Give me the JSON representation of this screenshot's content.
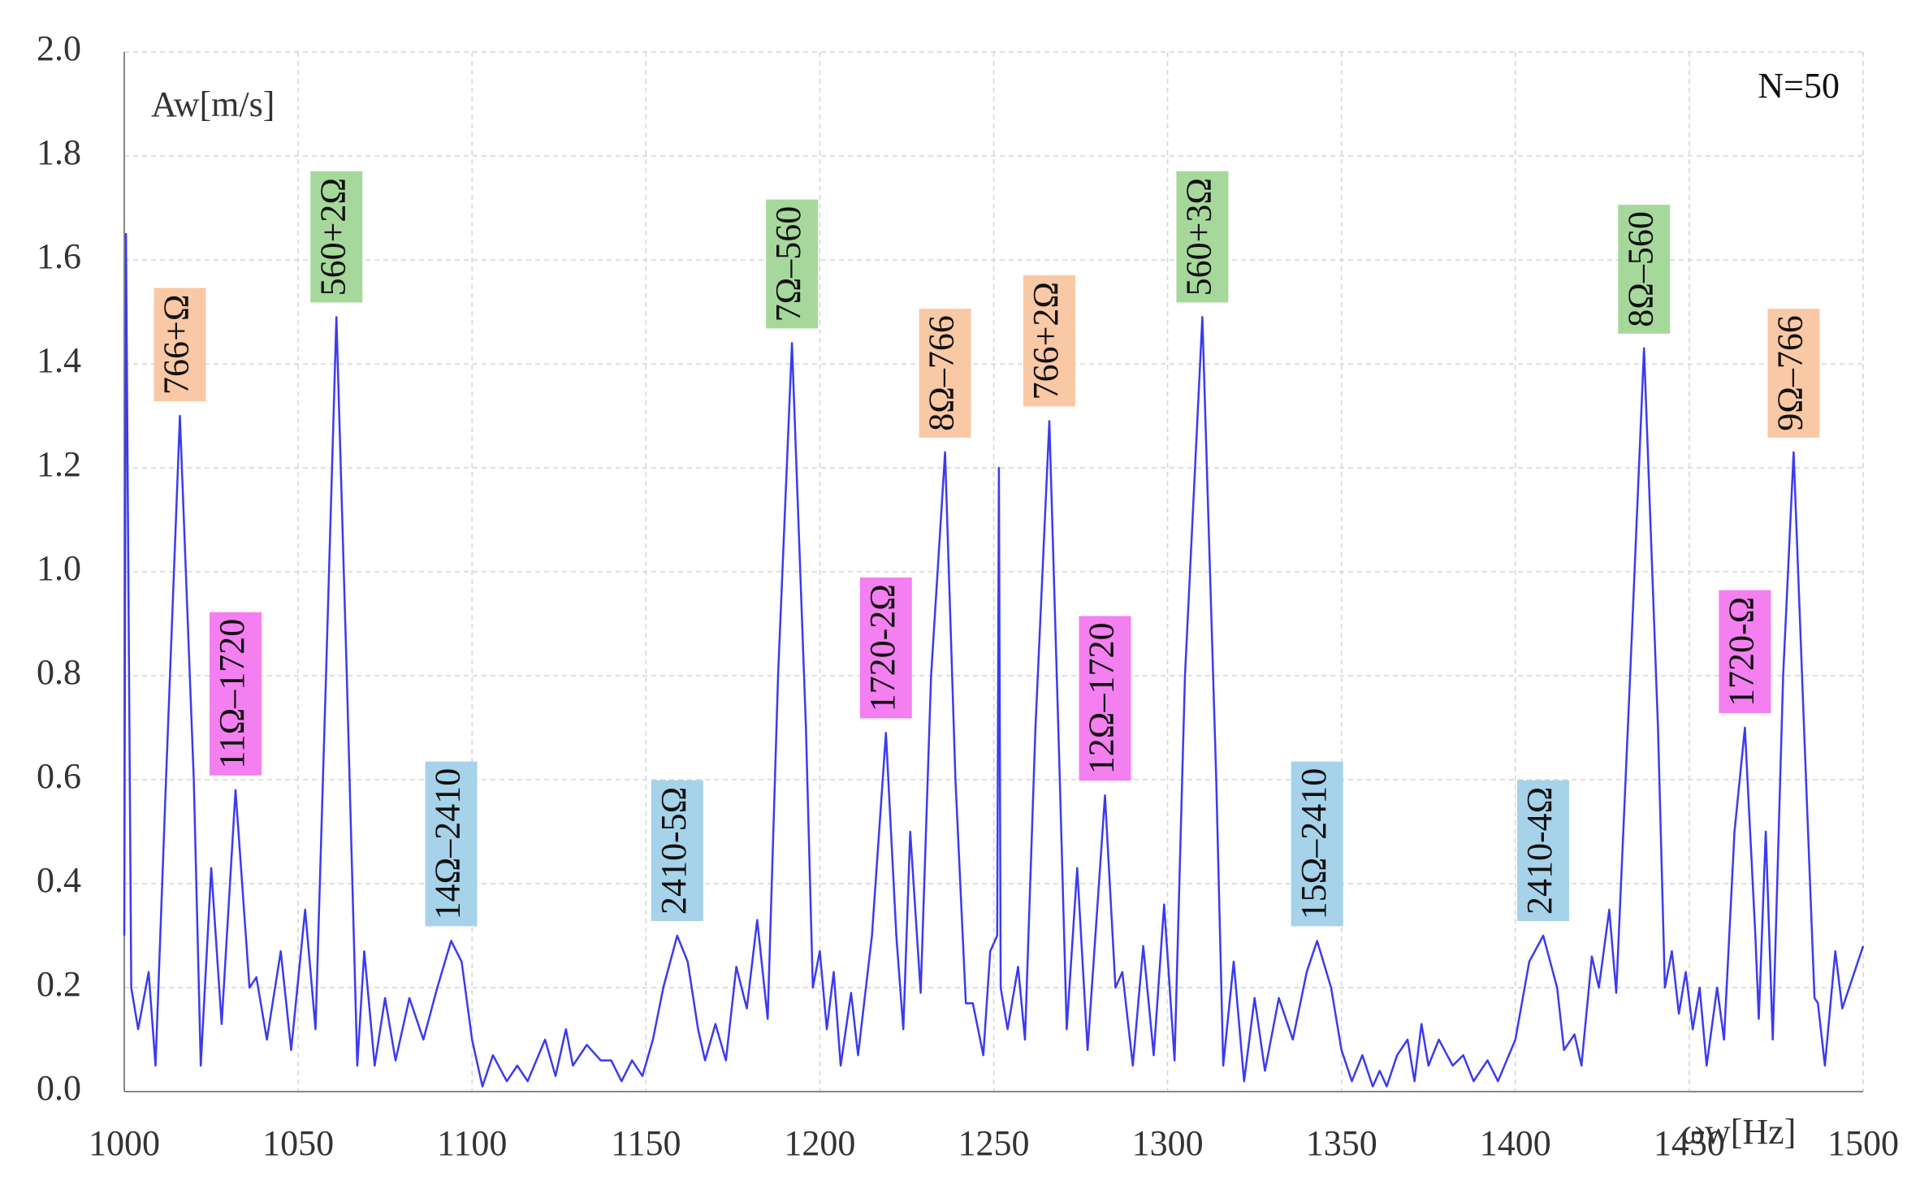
{
  "chart_data": {
    "type": "line",
    "y_label": "Aw[m/s]",
    "x_label": "ωw[Hz]",
    "note": "N=50",
    "x": [
      1000,
      1000.5,
      1002,
      1004,
      1007,
      1009,
      1012,
      1016,
      1020,
      1022,
      1025,
      1028,
      1032,
      1036,
      1038,
      1041,
      1045,
      1048,
      1052,
      1055,
      1058,
      1061,
      1064,
      1067,
      1069,
      1072,
      1075,
      1078,
      1082,
      1086,
      1090,
      1094,
      1097,
      1100,
      1103,
      1106,
      1110,
      1113,
      1116,
      1121,
      1124,
      1127,
      1129,
      1133,
      1137,
      1140,
      1143,
      1146,
      1149,
      1152,
      1155,
      1159,
      1162,
      1165,
      1167,
      1170,
      1173,
      1176,
      1179,
      1182,
      1185,
      1188,
      1192,
      1196,
      1198,
      1200,
      1202,
      1204,
      1206,
      1209,
      1211,
      1215,
      1219,
      1222,
      1224,
      1226,
      1229,
      1232,
      1236,
      1239,
      1242,
      1244,
      1247,
      1249,
      1251,
      1251.5,
      1252,
      1254,
      1257,
      1259,
      1262,
      1266,
      1269,
      1271,
      1274,
      1277,
      1282,
      1285,
      1287,
      1290,
      1293,
      1296,
      1299,
      1302,
      1305,
      1310,
      1314,
      1316,
      1319,
      1322,
      1325,
      1328,
      1332,
      1336,
      1340,
      1343,
      1347,
      1350,
      1353,
      1356,
      1359,
      1361,
      1363,
      1366,
      1369,
      1371,
      1373,
      1375,
      1378,
      1382,
      1385,
      1388,
      1392,
      1395,
      1400,
      1404,
      1408,
      1412,
      1414,
      1417,
      1419,
      1422,
      1424,
      1427,
      1429,
      1433,
      1437,
      1441,
      1443,
      1445,
      1447,
      1449,
      1451,
      1453,
      1455,
      1458,
      1460,
      1463,
      1466,
      1469,
      1470,
      1472,
      1474,
      1477,
      1480,
      1483,
      1486,
      1487,
      1489,
      1492,
      1494,
      1500
    ],
    "series": [
      {
        "color": "#3b3bef",
        "values": [
          0.3,
          1.65,
          0.2,
          0.12,
          0.23,
          0.05,
          0.6,
          1.3,
          0.6,
          0.05,
          0.43,
          0.13,
          0.58,
          0.2,
          0.22,
          0.1,
          0.27,
          0.08,
          0.35,
          0.12,
          0.8,
          1.49,
          0.8,
          0.05,
          0.27,
          0.05,
          0.18,
          0.06,
          0.18,
          0.1,
          0.2,
          0.29,
          0.25,
          0.1,
          0.01,
          0.07,
          0.02,
          0.05,
          0.02,
          0.1,
          0.03,
          0.12,
          0.05,
          0.09,
          0.06,
          0.06,
          0.02,
          0.06,
          0.03,
          0.1,
          0.2,
          0.3,
          0.25,
          0.12,
          0.06,
          0.13,
          0.06,
          0.24,
          0.16,
          0.33,
          0.14,
          0.8,
          1.44,
          0.7,
          0.2,
          0.27,
          0.12,
          0.23,
          0.05,
          0.19,
          0.07,
          0.3,
          0.69,
          0.3,
          0.12,
          0.5,
          0.19,
          0.8,
          1.23,
          0.6,
          0.17,
          0.17,
          0.07,
          0.27,
          0.3,
          1.2,
          0.2,
          0.12,
          0.24,
          0.1,
          0.7,
          1.29,
          0.6,
          0.12,
          0.43,
          0.08,
          0.57,
          0.2,
          0.23,
          0.05,
          0.28,
          0.07,
          0.36,
          0.06,
          0.8,
          1.49,
          0.6,
          0.05,
          0.25,
          0.02,
          0.18,
          0.04,
          0.18,
          0.1,
          0.23,
          0.29,
          0.2,
          0.08,
          0.02,
          0.07,
          0.01,
          0.04,
          0.01,
          0.07,
          0.1,
          0.02,
          0.13,
          0.05,
          0.1,
          0.05,
          0.07,
          0.02,
          0.06,
          0.02,
          0.1,
          0.25,
          0.3,
          0.2,
          0.08,
          0.11,
          0.05,
          0.26,
          0.2,
          0.35,
          0.19,
          0.8,
          1.43,
          0.7,
          0.2,
          0.27,
          0.15,
          0.23,
          0.12,
          0.2,
          0.05,
          0.2,
          0.1,
          0.5,
          0.7,
          0.3,
          0.14,
          0.5,
          0.1,
          0.8,
          1.23,
          0.7,
          0.18,
          0.17,
          0.05,
          0.27,
          0.16,
          0.28
        ]
      }
    ],
    "xlim": [
      1000,
      1500
    ],
    "xticks": [
      1000,
      1050,
      1100,
      1150,
      1200,
      1250,
      1300,
      1350,
      1400,
      1450,
      1500
    ],
    "ylim": [
      0,
      2
    ],
    "yticks": [
      {
        "value": 0,
        "label": "0.0"
      },
      0.2,
      0.4,
      0.6,
      0.8,
      {
        "value": 1,
        "label": "1.0"
      },
      1.2,
      1.4,
      1.6,
      1.8,
      {
        "value": 2,
        "label": "2.0"
      }
    ],
    "grid": true,
    "annotations": [
      {
        "text": "766+Ω",
        "x": 1016,
        "y": 1.3,
        "color": "#f9c8a4"
      },
      {
        "text": "11Ω–1720",
        "x": 1032,
        "y": 0.58,
        "color": "#f47ff0"
      },
      {
        "text": "560+2Ω",
        "x": 1061,
        "y": 1.49,
        "color": "#a6d89c"
      },
      {
        "text": "14Ω–2410",
        "x": 1094,
        "y": 0.29,
        "color": "#a6d2ea"
      },
      {
        "text": "2410-5Ω",
        "x": 1159,
        "y": 0.3,
        "color": "#a6d2ea"
      },
      {
        "text": "7Ω–560",
        "x": 1192,
        "y": 1.44,
        "color": "#a6d89c"
      },
      {
        "text": "1720-2Ω",
        "x": 1219,
        "y": 0.69,
        "color": "#f47ff0"
      },
      {
        "text": "8Ω–766",
        "x": 1236,
        "y": 1.23,
        "color": "#f9c8a4"
      },
      {
        "text": "766+2Ω",
        "x": 1266,
        "y": 1.29,
        "color": "#f9c8a4"
      },
      {
        "text": "12Ω–1720",
        "x": 1282,
        "y": 0.57,
        "color": "#f47ff0"
      },
      {
        "text": "560+3Ω",
        "x": 1310,
        "y": 1.49,
        "color": "#a6d89c"
      },
      {
        "text": "15Ω–2410",
        "x": 1343,
        "y": 0.29,
        "color": "#a6d2ea"
      },
      {
        "text": "2410-4Ω",
        "x": 1408,
        "y": 0.3,
        "color": "#a6d2ea"
      },
      {
        "text": "8Ω–560",
        "x": 1437,
        "y": 1.43,
        "color": "#a6d89c"
      },
      {
        "text": "1720-Ω",
        "x": 1466,
        "y": 0.7,
        "color": "#f47ff0"
      },
      {
        "text": "9Ω–766",
        "x": 1480,
        "y": 1.23,
        "color": "#f9c8a4"
      }
    ]
  }
}
